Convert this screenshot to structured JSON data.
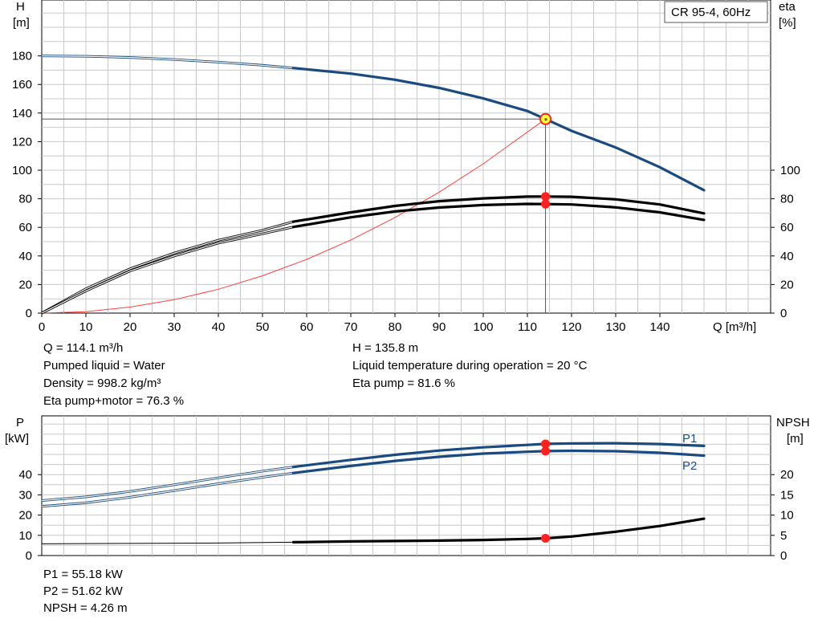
{
  "chart_data": [
    {
      "type": "line",
      "title": "CR 95-4, 60Hz",
      "xlabel": "Q [m³/h]",
      "ylabel": "H\n[m]",
      "ylabel_lines": [
        "H",
        "[m]"
      ],
      "y2label_lines": [
        "eta",
        "[%]"
      ],
      "xlim": [
        0,
        160
      ],
      "ylim": [
        0,
        200
      ],
      "y2lim": [
        0,
        200
      ],
      "xticks": [
        0,
        10,
        20,
        30,
        40,
        50,
        60,
        70,
        80,
        90,
        100,
        110,
        120,
        130,
        140
      ],
      "yticks": [
        0,
        20,
        40,
        60,
        80,
        100,
        120,
        140,
        160,
        180
      ],
      "y2ticks": [
        0,
        20,
        40,
        60,
        80,
        100
      ],
      "grid": true,
      "series": [
        {
          "key": "H",
          "color": "#1a4a7f",
          "thin_x": [
            0,
            10,
            20,
            30,
            40,
            50,
            57
          ],
          "thin_y": [
            180,
            179.7,
            178.9,
            177.5,
            175.6,
            173.4,
            171.5
          ],
          "bold_x": [
            57,
            70,
            80,
            90,
            100,
            110,
            114.1,
            120,
            130,
            140,
            150
          ],
          "bold_y": [
            171.5,
            167.6,
            163.3,
            157.6,
            150.2,
            141.4,
            135.8,
            127.5,
            115.9,
            102.1,
            86
          ]
        },
        {
          "key": "eta_pump",
          "color": "#000000",
          "thin_x": [
            0,
            10,
            20,
            30,
            40,
            50,
            57
          ],
          "thin_y": [
            0,
            17,
            31,
            42,
            51,
            58,
            64
          ],
          "bold_x": [
            57,
            70,
            80,
            90,
            100,
            110,
            114.1,
            120,
            130,
            140,
            150
          ],
          "bold_y": [
            64,
            70.5,
            75,
            78.3,
            80.3,
            81.5,
            81.6,
            81.4,
            79.6,
            76,
            69.8
          ]
        },
        {
          "key": "eta_pump_motor",
          "color": "#000000",
          "thin_x": [
            0,
            10,
            20,
            30,
            40,
            50,
            57
          ],
          "thin_y": [
            0,
            15.5,
            29.5,
            40,
            49,
            55.5,
            60.3
          ],
          "bold_x": [
            57,
            70,
            80,
            90,
            100,
            110,
            114.1,
            120,
            130,
            140,
            150
          ],
          "bold_y": [
            60.3,
            67,
            71.1,
            73.9,
            75.6,
            76.4,
            76.3,
            76,
            74,
            70.5,
            65.2
          ]
        },
        {
          "key": "system",
          "color": "#ff4040",
          "x": [
            0,
            10,
            20,
            30,
            40,
            50,
            60,
            70,
            80,
            90,
            100,
            114.1
          ],
          "y": [
            0,
            1,
            4.2,
            9.4,
            16.7,
            26.1,
            37.6,
            51.2,
            66.9,
            84.6,
            104.5,
            135.8
          ]
        }
      ],
      "operating_point": {
        "x": 114.1,
        "y": 135.8,
        "eta_pump": 81.6,
        "eta_pump_motor": 76.3
      }
    },
    {
      "type": "line",
      "xlim": [
        0,
        160
      ],
      "ylim": [
        0,
        55
      ],
      "y2lim": [
        0,
        27.5
      ],
      "ylabel_lines": [
        "P",
        "[kW]"
      ],
      "y2label_lines": [
        "NPSH",
        "[m]"
      ],
      "yticks": [
        0,
        10,
        20,
        30,
        40
      ],
      "y2ticks": [
        0,
        5,
        10,
        15,
        20
      ],
      "grid": true,
      "series": [
        {
          "name": "P1",
          "color": "#1a4a7f",
          "thin_x": [
            0,
            10,
            20,
            30,
            40,
            50,
            57
          ],
          "thin_y": [
            27.2,
            29,
            31.7,
            35,
            38.4,
            41.7,
            43.8
          ],
          "bold_x": [
            57,
            70,
            80,
            90,
            100,
            110,
            114.1,
            120,
            130,
            140,
            150
          ],
          "bold_y": [
            43.8,
            47.3,
            49.8,
            51.9,
            53.5,
            54.7,
            55.18,
            55.4,
            55.5,
            55.1,
            54.2
          ]
        },
        {
          "name": "P2",
          "color": "#1a4a7f",
          "thin_x": [
            0,
            10,
            20,
            30,
            40,
            50,
            57
          ],
          "thin_y": [
            24.3,
            26.1,
            28.8,
            32.1,
            35.5,
            38.7,
            40.8
          ],
          "bold_x": [
            57,
            70,
            80,
            90,
            100,
            110,
            114.1,
            120,
            130,
            140,
            150
          ],
          "bold_y": [
            40.8,
            44.3,
            46.8,
            48.8,
            50.4,
            51.3,
            51.62,
            51.8,
            51.6,
            50.8,
            49.4
          ]
        },
        {
          "key": "NPSH",
          "axis": "y2",
          "color": "#000000",
          "thin_x": [
            0,
            20,
            40,
            57
          ],
          "thin_y": [
            2.9,
            3.0,
            3.1,
            3.3
          ],
          "bold_x": [
            57,
            70,
            80,
            90,
            100,
            110,
            114.1,
            120,
            130,
            140,
            150
          ],
          "bold_y": [
            3.3,
            3.5,
            3.6,
            3.7,
            3.85,
            4.1,
            4.26,
            4.7,
            5.9,
            7.3,
            9.1
          ]
        }
      ],
      "operating_point": {
        "x": 114.1,
        "P1": 55.18,
        "P2": 51.62,
        "NPSH": 4.26
      }
    }
  ],
  "info_top": {
    "q": "Q = 114.1 m³/h",
    "liquid": "Pumped liquid = Water",
    "density": "Density = 998.2 kg/m³",
    "eta_pm": "Eta pump+motor = 76.3 %",
    "h": "H = 135.8 m",
    "temp": "Liquid temperature during operation = 20 °C",
    "eta_p": "Eta pump = 81.6 %"
  },
  "info_bottom": {
    "p1": "P1 = 55.18 kW",
    "p2": "P2 = 51.62 kW",
    "npsh": "NPSH = 4.26 m"
  },
  "colors": {
    "curve_blue": "#1a4a7f",
    "marker_red": "#ff2020",
    "marker_yellow": "#ffff40",
    "grid": "#c8c8c8",
    "system_curve": "#ff4040"
  }
}
